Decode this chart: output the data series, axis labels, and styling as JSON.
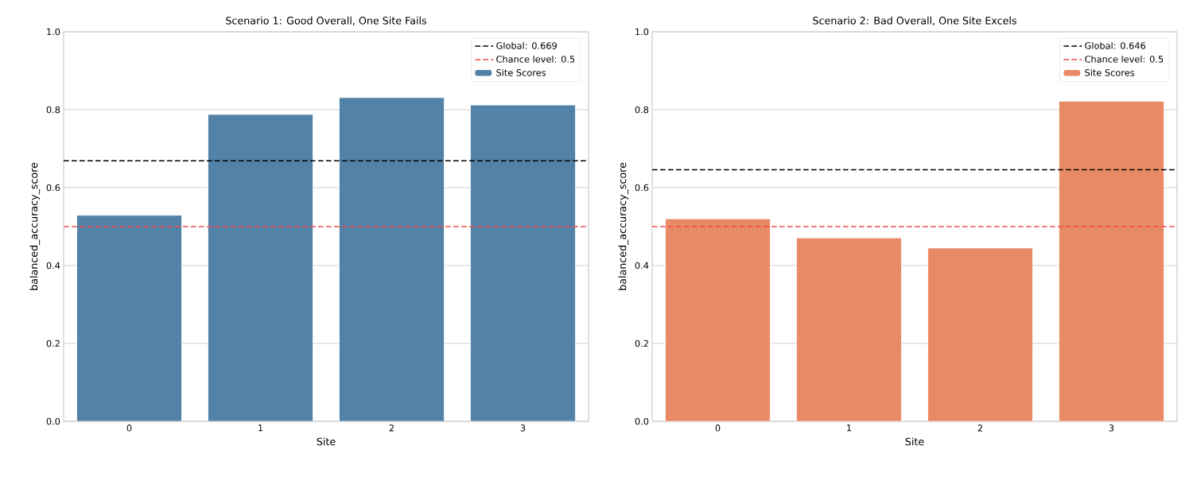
{
  "chart_data": [
    {
      "type": "bar",
      "title": "Scenario 1: Good Overall, One Site Fails",
      "xlabel": "Site",
      "ylabel": "balanced_accuracy_score",
      "categories": [
        "0",
        "1",
        "2",
        "3"
      ],
      "series": [
        {
          "name": "Site Scores",
          "color": "#5282a7",
          "values": [
            0.529,
            0.788,
            0.831,
            0.812
          ]
        }
      ],
      "ylim": [
        0,
        1
      ],
      "yticks": [
        {
          "value": 0,
          "label": "0.0"
        },
        {
          "value": 0.2,
          "label": "0.2"
        },
        {
          "value": 0.4,
          "label": "0.4"
        },
        {
          "value": 0.6,
          "label": "0.6"
        },
        {
          "value": 0.8,
          "label": "0.8"
        },
        {
          "value": 1,
          "label": "1.0"
        }
      ],
      "ref_lines": [
        {
          "axis": "y",
          "value": 0.669,
          "label": "Global: 0.669",
          "color": "#000000",
          "line_style": "dashed"
        },
        {
          "axis": "y",
          "value": 0.5,
          "label": "Chance level: 0.5",
          "color": "#f24a4a",
          "line_style": "dashed"
        }
      ],
      "grid": "y",
      "legend": "top right"
    },
    {
      "type": "bar",
      "title": "Scenario 2: Bad Overall, One Site Excels",
      "xlabel": "Site",
      "ylabel": "balanced_accuracy_score",
      "categories": [
        "0",
        "1",
        "2",
        "3"
      ],
      "series": [
        {
          "name": "Site Scores",
          "color": "#e98a66",
          "values": [
            0.52,
            0.471,
            0.445,
            0.822
          ]
        }
      ],
      "ylim": [
        0,
        1
      ],
      "yticks": [
        {
          "value": 0,
          "label": "0.0"
        },
        {
          "value": 0.2,
          "label": "0.2"
        },
        {
          "value": 0.4,
          "label": "0.4"
        },
        {
          "value": 0.6,
          "label": "0.6"
        },
        {
          "value": 0.8,
          "label": "0.8"
        },
        {
          "value": 1,
          "label": "1.0"
        }
      ],
      "ref_lines": [
        {
          "axis": "y",
          "value": 0.646,
          "label": "Global: 0.646",
          "color": "#000000",
          "line_style": "dashed"
        },
        {
          "axis": "y",
          "value": 0.5,
          "label": "Chance level: 0.5",
          "color": "#f24a4a",
          "line_style": "dashed"
        }
      ],
      "grid": "y",
      "legend": "top right"
    }
  ]
}
